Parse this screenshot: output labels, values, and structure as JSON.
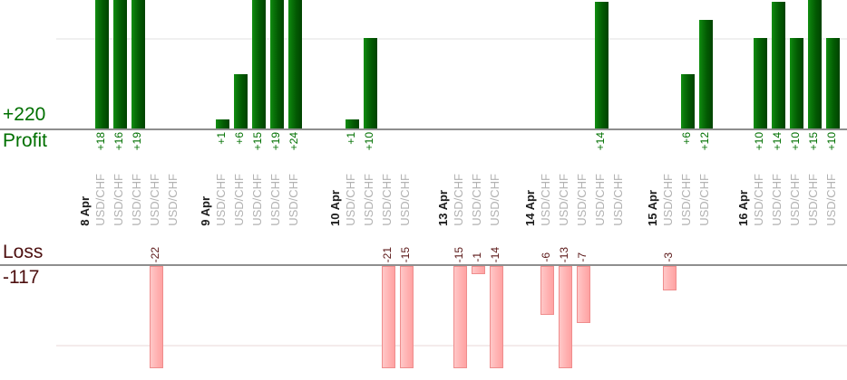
{
  "summary": {
    "profit_total": "+220",
    "profit_axis_label": "Profit",
    "loss_axis_label": "Loss",
    "loss_total": "-117"
  },
  "chart_data": {
    "type": "bar",
    "orientation": "vertical, profits above upper axis, losses below lower axis",
    "profit_total": 220,
    "loss_total": -117,
    "gridlines": {
      "profit_gridline_value": 10,
      "loss_gridline_value": -10,
      "grid_visible": true
    },
    "visible_value_range": {
      "profit_clip_at": 14.2,
      "loss_clip_at": -12.7
    },
    "legend_position": "none",
    "groups": [
      {
        "date": "8 Apr",
        "trades": [
          {
            "symbol": "USD/CHF",
            "value": 18,
            "label": "+18"
          },
          {
            "symbol": "USD/CHF",
            "value": 16,
            "label": "+16"
          },
          {
            "symbol": "USD/CHF",
            "value": 19,
            "label": "+19"
          },
          {
            "symbol": "USD/CHF",
            "value": -22,
            "label": "-22"
          },
          {
            "symbol": "USD/CHF",
            "value": null,
            "label": ""
          }
        ]
      },
      {
        "date": "9 Apr",
        "trades": [
          {
            "symbol": "USD/CHF",
            "value": 1,
            "label": "+1"
          },
          {
            "symbol": "USD/CHF",
            "value": 6,
            "label": "+6"
          },
          {
            "symbol": "USD/CHF",
            "value": 15,
            "label": "+15"
          },
          {
            "symbol": "USD/CHF",
            "value": 19,
            "label": "+19"
          },
          {
            "symbol": "USD/CHF",
            "value": 24,
            "label": "+24"
          }
        ]
      },
      {
        "date": "10 Apr",
        "trades": [
          {
            "symbol": "USD/CHF",
            "value": 1,
            "label": "+1"
          },
          {
            "symbol": "USD/CHF",
            "value": 10,
            "label": "+10"
          },
          {
            "symbol": "USD/CHF",
            "value": -21,
            "label": "-21"
          },
          {
            "symbol": "USD/CHF",
            "value": -15,
            "label": "-15"
          }
        ]
      },
      {
        "date": "13 Apr",
        "trades": [
          {
            "symbol": "USD/CHF",
            "value": -15,
            "label": "-15"
          },
          {
            "symbol": "USD/CHF",
            "value": -1,
            "label": "-1"
          },
          {
            "symbol": "USD/CHF",
            "value": -14,
            "label": "-14"
          }
        ]
      },
      {
        "date": "14 Apr",
        "trades": [
          {
            "symbol": "USD/CHF",
            "value": -6,
            "label": "-6"
          },
          {
            "symbol": "USD/CHF",
            "value": -13,
            "label": "-13"
          },
          {
            "symbol": "USD/CHF",
            "value": -7,
            "label": "-7"
          },
          {
            "symbol": "USD/CHF",
            "value": 14,
            "label": "+14"
          },
          {
            "symbol": "USD/CHF",
            "value": null,
            "label": ""
          }
        ]
      },
      {
        "date": "15 Apr",
        "trades": [
          {
            "symbol": "USD/CHF",
            "value": -3,
            "label": "-3"
          },
          {
            "symbol": "USD/CHF",
            "value": 6,
            "label": "+6"
          },
          {
            "symbol": "USD/CHF",
            "value": 12,
            "label": "+12"
          }
        ]
      },
      {
        "date": "16 Apr",
        "trades": [
          {
            "symbol": "USD/CHF",
            "value": 10,
            "label": "+10"
          },
          {
            "symbol": "USD/CHF",
            "value": 14,
            "label": "+14"
          },
          {
            "symbol": "USD/CHF",
            "value": 10,
            "label": "+10"
          },
          {
            "symbol": "USD/CHF",
            "value": 15,
            "label": "+15"
          },
          {
            "symbol": "USD/CHF",
            "value": 10,
            "label": "+10"
          }
        ]
      }
    ]
  },
  "colors": {
    "profit_text": "#007000",
    "loss_text": "#4d1010",
    "profit_bar_light": "#129012",
    "profit_bar_dark": "#004200",
    "loss_bar_fill": "#ffb4b4",
    "loss_bar_border": "#ef8d8d",
    "axis_line": "#8e8e8e",
    "date_label": "#1c1c1c",
    "symbol_label": "#b2b2b2"
  }
}
